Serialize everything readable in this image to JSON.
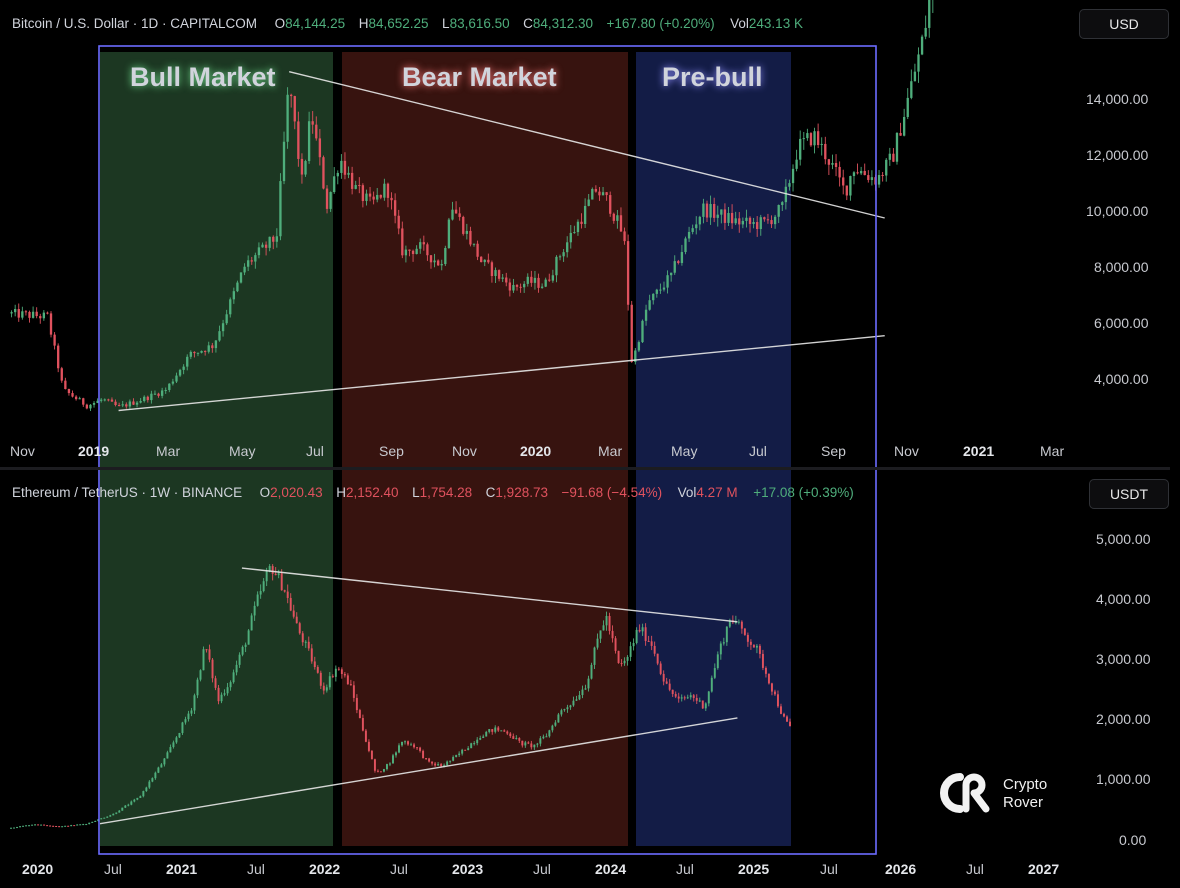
{
  "top_header": {
    "symbol": "Bitcoin / U.S. Dollar · 1D · CAPITALCOM",
    "o_label": "O",
    "o_value": "84,144.25",
    "h_label": "H",
    "h_value": "84,652.25",
    "l_label": "L",
    "l_value": "83,616.50",
    "c_label": "C",
    "c_value": "84,312.30",
    "change": "+167.80 (+0.20%)",
    "vol_label": "Vol",
    "vol_value": "243.13 K"
  },
  "bottom_header": {
    "symbol": "Ethereum / TetherUS · 1W · BINANCE",
    "o_label": "O",
    "o_value": "2,020.43",
    "h_label": "H",
    "h_value": "2,152.40",
    "l_label": "L",
    "l_value": "1,754.28",
    "c_label": "C",
    "c_value": "1,928.73",
    "change": "−91.68 (−4.54%)",
    "vol_label": "Vol",
    "vol_value": "4.27 M",
    "vol_change": "+17.08 (+0.39%)"
  },
  "currency_top": "USD",
  "currency_bottom": "USDT",
  "phases": [
    {
      "label": "Bull Market",
      "color": "#dff5e4"
    },
    {
      "label": "Bear Market",
      "color": "#ffd8d8"
    },
    {
      "label": "Pre-bull",
      "color": "#dcdcff"
    }
  ],
  "colors": {
    "up": "#4fae7c",
    "down": "#e0525e",
    "bull_zone": "#1d3a24",
    "bear_zone": "#3a1410",
    "prebull_zone": "#141d4a",
    "frame": "#6b6bff",
    "trendline": "#e8e8e8"
  },
  "logo": {
    "icon": "crypto-rover-logo",
    "line1": "Crypto",
    "line2": "Rover"
  },
  "chart_data": [
    {
      "type": "candlestick",
      "series_name": "Bitcoin / U.S. Dollar",
      "x_ticks": [
        "Nov",
        "2019",
        "Mar",
        "May",
        "Jul",
        "Sep",
        "Nov",
        "2020",
        "Mar",
        "May",
        "Jul",
        "Sep",
        "Nov",
        "2021",
        "Mar"
      ],
      "x_ticks_bold": [
        "2019",
        "2020",
        "2021"
      ],
      "y_ticks": [
        "4,000.00",
        "6,000.00",
        "8,000.00",
        "10,000.00",
        "12,000.00",
        "14,000.00"
      ],
      "ylim": [
        2800,
        16000
      ],
      "price_path": [
        [
          0,
          6400
        ],
        [
          2.5,
          6300
        ],
        [
          3.5,
          4000
        ],
        [
          5,
          3500
        ],
        [
          6,
          3700
        ],
        [
          7,
          3450
        ],
        [
          8.5,
          3700
        ],
        [
          10,
          4000
        ],
        [
          11.5,
          5100
        ],
        [
          13,
          5400
        ],
        [
          15,
          7900
        ],
        [
          17,
          8800
        ],
        [
          17.8,
          13700
        ],
        [
          18.6,
          10500
        ],
        [
          19.2,
          12700
        ],
        [
          20.2,
          9800
        ],
        [
          21,
          11300
        ],
        [
          22,
          10300
        ],
        [
          23,
          9800
        ],
        [
          24,
          10400
        ],
        [
          25,
          8300
        ],
        [
          26,
          8500
        ],
        [
          27.5,
          7900
        ],
        [
          28,
          9900
        ],
        [
          30,
          8000
        ],
        [
          32,
          7200
        ],
        [
          33,
          7400
        ],
        [
          34,
          7300
        ],
        [
          35,
          8300
        ],
        [
          36.5,
          9600
        ],
        [
          37.2,
          10300
        ],
        [
          38,
          9900
        ],
        [
          39,
          8800
        ],
        [
          39.5,
          4800
        ],
        [
          40.5,
          6700
        ],
        [
          42,
          7600
        ],
        [
          43,
          8800
        ],
        [
          44,
          9700
        ],
        [
          45,
          9500
        ],
        [
          46,
          9300
        ],
        [
          47,
          9200
        ],
        [
          48,
          9250
        ],
        [
          49,
          9700
        ],
        [
          50,
          11600
        ],
        [
          51,
          12000
        ],
        [
          52,
          11200
        ],
        [
          53,
          10200
        ],
        [
          53.5,
          11000
        ],
        [
          55,
          10600
        ],
        [
          56,
          11300
        ],
        [
          57,
          13200
        ],
        [
          58,
          15200
        ],
        [
          58.5,
          16800
        ],
        [
          59,
          18500
        ]
      ],
      "trendlines": [
        {
          "from": [
            17.8,
            14000
          ],
          "to": [
            55.5,
            9400
          ]
        },
        {
          "from": [
            7,
            3350
          ],
          "to": [
            55.5,
            5700
          ]
        }
      ]
    },
    {
      "type": "candlestick",
      "series_name": "Ethereum / TetherUS",
      "x_ticks": [
        "2020",
        "Jul",
        "2021",
        "Jul",
        "2022",
        "Jul",
        "2023",
        "Jul",
        "2024",
        "Jul",
        "2025",
        "Jul",
        "2026",
        "Jul",
        "2027"
      ],
      "x_ticks_bold": [
        "2020",
        "2021",
        "2022",
        "2023",
        "2024",
        "2025",
        "2026",
        "2027"
      ],
      "y_ticks": [
        "0.00",
        "1,000.00",
        "2,000.00",
        "3,000.00",
        "4,000.00",
        "5,000.00"
      ],
      "ylim": [
        -200,
        5600
      ],
      "price_path": [
        [
          0,
          150
        ],
        [
          2,
          220
        ],
        [
          4,
          180
        ],
        [
          6,
          230
        ],
        [
          8,
          400
        ],
        [
          10,
          700
        ],
        [
          12,
          1400
        ],
        [
          14,
          2300
        ],
        [
          15,
          3400
        ],
        [
          16,
          2400
        ],
        [
          17,
          2800
        ],
        [
          18,
          3400
        ],
        [
          19,
          4200
        ],
        [
          20,
          4800
        ],
        [
          21,
          4400
        ],
        [
          22,
          3700
        ],
        [
          23,
          3200
        ],
        [
          24,
          2600
        ],
        [
          25,
          3000
        ],
        [
          26,
          2700
        ],
        [
          27,
          1900
        ],
        [
          28,
          1100
        ],
        [
          29,
          1300
        ],
        [
          30,
          1700
        ],
        [
          31,
          1600
        ],
        [
          32,
          1300
        ],
        [
          33,
          1250
        ],
        [
          34,
          1400
        ],
        [
          35,
          1600
        ],
        [
          36,
          1800
        ],
        [
          37,
          1900
        ],
        [
          38,
          1850
        ],
        [
          39,
          1650
        ],
        [
          40,
          1600
        ],
        [
          41,
          1800
        ],
        [
          42,
          2200
        ],
        [
          43,
          2400
        ],
        [
          44,
          2700
        ],
        [
          45,
          3600
        ],
        [
          45.5,
          3900
        ],
        [
          46.5,
          3000
        ],
        [
          47,
          3100
        ],
        [
          48,
          3700
        ],
        [
          49,
          3400
        ],
        [
          50,
          2700
        ],
        [
          51,
          2400
        ],
        [
          52,
          2500
        ],
        [
          53,
          2300
        ],
        [
          54,
          3200
        ],
        [
          55,
          3900
        ],
        [
          56,
          3600
        ],
        [
          57,
          3300
        ],
        [
          58,
          2700
        ],
        [
          59,
          2100
        ],
        [
          59.5,
          1930
        ]
      ],
      "trendlines": [
        {
          "from": [
            17.8,
            4750
          ],
          "to": [
            55.5,
            3800
          ]
        },
        {
          "from": [
            7,
            230
          ],
          "to": [
            55.5,
            2100
          ]
        }
      ]
    }
  ]
}
